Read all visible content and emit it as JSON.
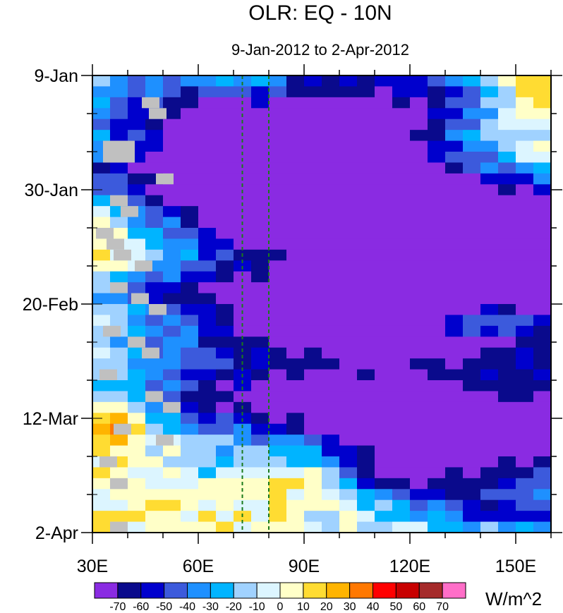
{
  "chart_data": {
    "type": "heatmap",
    "title": "OLR: EQ - 10N",
    "subtitle": "9-Jan-2012 to 2-Apr-2012",
    "xlabel": "",
    "ylabel": "",
    "x_range": [
      30,
      160
    ],
    "x_ticks": [
      {
        "value": 30,
        "label": "30E"
      },
      {
        "value": 60,
        "label": "60E"
      },
      {
        "value": 90,
        "label": "90E"
      },
      {
        "value": 120,
        "label": "120E"
      },
      {
        "value": 150,
        "label": "150E"
      }
    ],
    "y_range_days": [
      0,
      84
    ],
    "y_ticks": [
      {
        "day": 0,
        "label": "9-Jan"
      },
      {
        "day": 21,
        "label": "30-Jan"
      },
      {
        "day": 42,
        "label": "20-Feb"
      },
      {
        "day": 63,
        "label": "12-Mar"
      },
      {
        "day": 84,
        "label": "2-Apr"
      }
    ],
    "reference_lines_lon": [
      72.5,
      80
    ],
    "reference_line_color": "#1a7a1a",
    "missing_color": "#c0c0c0",
    "colorbar": {
      "unit_label": "W/m^2",
      "levels": [
        -70,
        -60,
        -50,
        -40,
        -30,
        -20,
        -10,
        0,
        10,
        20,
        30,
        40,
        50,
        60,
        70
      ],
      "colors": [
        "#8a2be2",
        "#0a0a8c",
        "#0000cd",
        "#3c5adc",
        "#1e90ff",
        "#00b4ff",
        "#a0d2ff",
        "#dcf5ff",
        "#ffffc8",
        "#ffdc32",
        "#ffb400",
        "#ff7800",
        "#ff0000",
        "#c80000",
        "#a52a2a",
        "#ff6ec8"
      ]
    },
    "grid": {
      "lon_step": 5,
      "day_step": 2,
      "lon_start": 30,
      "lon_end": 160,
      "day_start": 0,
      "day_end": 84
    },
    "wet_bands": [
      {
        "t0": 2,
        "x0": 95,
        "t1": 36,
        "x1": 155,
        "width": 5,
        "amp": 55
      },
      {
        "t0": 8,
        "x0": 75,
        "t1": 32,
        "x1": 130,
        "width": 4,
        "amp": 45
      },
      {
        "t0": 18,
        "x0": 62,
        "t1": 40,
        "x1": 140,
        "width": 3.5,
        "amp": 55
      },
      {
        "t0": 40,
        "x0": 60,
        "t1": 48,
        "x1": 140,
        "width": 3,
        "amp": 60
      },
      {
        "t0": 50,
        "x0": 85,
        "t1": 62,
        "x1": 155,
        "width": 4,
        "amp": 60
      },
      {
        "t0": 60,
        "x0": 75,
        "t1": 70,
        "x1": 140,
        "width": 3.5,
        "amp": 60
      },
      {
        "t0": 72,
        "x0": 100,
        "t1": 80,
        "x1": 150,
        "width": 2.5,
        "amp": 45
      }
    ],
    "dry_spots": [
      {
        "t": 4,
        "x": 160,
        "rt": 14,
        "rx": 22,
        "amp": 50
      },
      {
        "t": 14,
        "x": 140,
        "rt": 6,
        "rx": 20,
        "amp": 35
      },
      {
        "t": 2,
        "x": 75,
        "rt": 3,
        "rx": 12,
        "amp": 30
      },
      {
        "t": 36,
        "x": 140,
        "rt": 8,
        "rx": 14,
        "amp": 25
      },
      {
        "t": 46,
        "x": 140,
        "rt": 3,
        "rx": 18,
        "amp": 45
      },
      {
        "t": 47,
        "x": 110,
        "rt": 3,
        "rx": 10,
        "amp": 25
      },
      {
        "t": 73,
        "x": 90,
        "rt": 5,
        "rx": 14,
        "amp": 50
      },
      {
        "t": 64,
        "x": 37,
        "rt": 5,
        "rx": 6,
        "amp": 45
      },
      {
        "t": 30,
        "x": 35,
        "rt": 12,
        "rx": 8,
        "amp": 18
      },
      {
        "t": 30,
        "x": 88,
        "rt": 4,
        "rx": 8,
        "amp": 25
      }
    ],
    "missing_cells": [
      {
        "day": 12,
        "lon": 33
      },
      {
        "day": 12,
        "lon": 35
      },
      {
        "day": 12,
        "lon": 37
      },
      {
        "day": 14,
        "lon": 33
      },
      {
        "day": 14,
        "lon": 35
      },
      {
        "day": 14,
        "lon": 37
      },
      {
        "day": 4,
        "lon": 44
      },
      {
        "day": 6,
        "lon": 46
      },
      {
        "day": 18,
        "lon": 48
      },
      {
        "day": 22,
        "lon": 35
      },
      {
        "day": 24,
        "lon": 38
      },
      {
        "day": 28,
        "lon": 31
      },
      {
        "day": 30,
        "lon": 34
      },
      {
        "day": 32,
        "lon": 36
      },
      {
        "day": 34,
        "lon": 42
      },
      {
        "day": 38,
        "lon": 35
      },
      {
        "day": 40,
        "lon": 41
      },
      {
        "day": 42,
        "lon": 46
      },
      {
        "day": 46,
        "lon": 33
      },
      {
        "day": 48,
        "lon": 40
      },
      {
        "day": 50,
        "lon": 44
      },
      {
        "day": 54,
        "lon": 32
      },
      {
        "day": 58,
        "lon": 45
      },
      {
        "day": 60,
        "lon": 50
      },
      {
        "day": 64,
        "lon": 36
      },
      {
        "day": 66,
        "lon": 48
      },
      {
        "day": 70,
        "lon": 32
      },
      {
        "day": 74,
        "lon": 35
      },
      {
        "day": 82,
        "lon": 35
      }
    ]
  }
}
